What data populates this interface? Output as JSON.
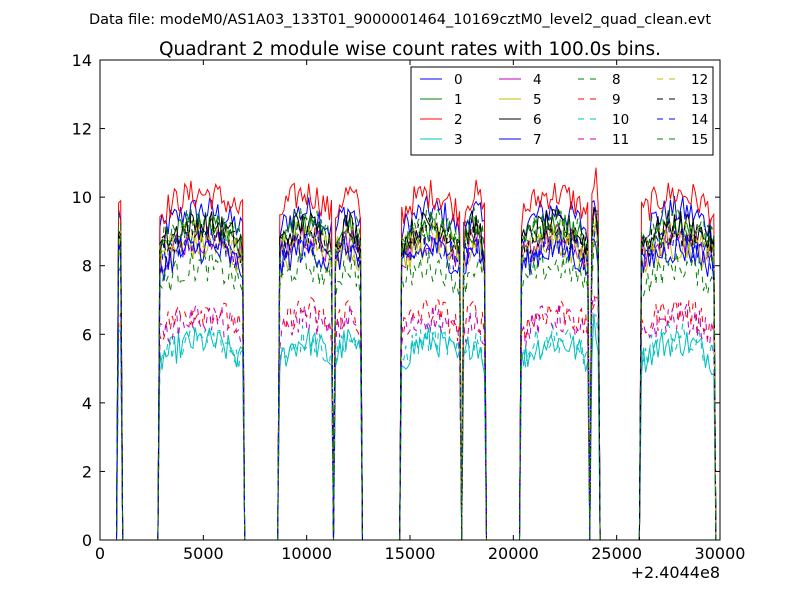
{
  "suptitle": "Data file: modeM0/AS1A03_133T01_9000001464_10169cztM0_level2_quad_clean.evt",
  "chart_data": {
    "type": "line",
    "title": "Quadrant 2 module wise count rates with 100.0s bins.",
    "xlabel": "",
    "ylabel": "",
    "x_offset_label": "+2.4044e8",
    "xlim": [
      0,
      30000
    ],
    "ylim": [
      0,
      14
    ],
    "xticks": [
      "0",
      "5000",
      "10000",
      "15000",
      "20000",
      "25000",
      "30000"
    ],
    "yticks": [
      "0",
      "2",
      "4",
      "6",
      "8",
      "10",
      "12",
      "14"
    ],
    "grid": false,
    "legend_position": "top-right",
    "legend_columns": 4,
    "active_segments": [
      [
        900,
        1000
      ],
      [
        2900,
        6900
      ],
      [
        8700,
        11200
      ],
      [
        11400,
        12600
      ],
      [
        14600,
        17400
      ],
      [
        17600,
        18600
      ],
      [
        20400,
        23600
      ],
      [
        23800,
        24100
      ],
      [
        26200,
        29700
      ]
    ],
    "segment_levels": [
      {
        "name": "0",
        "value": 9.0
      },
      {
        "name": "1",
        "value": 8.5
      },
      {
        "name": "2",
        "value": 9.5
      },
      {
        "name": "3",
        "value": 5.2
      },
      {
        "name": "4",
        "value": 8.2
      },
      {
        "name": "5",
        "value": 8.0
      },
      {
        "name": "6",
        "value": 8.6
      },
      {
        "name": "7",
        "value": 7.9
      },
      {
        "name": "8",
        "value": 7.4
      },
      {
        "name": "9",
        "value": 6.1
      },
      {
        "name": "10",
        "value": 5.3
      },
      {
        "name": "11",
        "value": 5.9
      },
      {
        "name": "12",
        "value": 8.3
      },
      {
        "name": "13",
        "value": 8.4
      },
      {
        "name": "14",
        "value": 8.1
      },
      {
        "name": "15",
        "value": 8.7
      }
    ],
    "series": [
      {
        "name": "0",
        "color": "#0000ff",
        "dash": "solid"
      },
      {
        "name": "1",
        "color": "#008000",
        "dash": "solid"
      },
      {
        "name": "2",
        "color": "#ff0000",
        "dash": "solid"
      },
      {
        "name": "3",
        "color": "#00bfbf",
        "dash": "solid"
      },
      {
        "name": "4",
        "color": "#bf00bf",
        "dash": "solid"
      },
      {
        "name": "5",
        "color": "#bfbf00",
        "dash": "solid"
      },
      {
        "name": "6",
        "color": "#000000",
        "dash": "solid"
      },
      {
        "name": "7",
        "color": "#0000ff",
        "dash": "solid"
      },
      {
        "name": "8",
        "color": "#008000",
        "dash": "dashed"
      },
      {
        "name": "9",
        "color": "#ff0000",
        "dash": "dashed"
      },
      {
        "name": "10",
        "color": "#00bfbf",
        "dash": "dashed"
      },
      {
        "name": "11",
        "color": "#bf00bf",
        "dash": "dashed"
      },
      {
        "name": "12",
        "color": "#bfbf00",
        "dash": "dashed"
      },
      {
        "name": "13",
        "color": "#000000",
        "dash": "dashed"
      },
      {
        "name": "14",
        "color": "#0000ff",
        "dash": "dashed"
      },
      {
        "name": "15",
        "color": "#008000",
        "dash": "dashed"
      }
    ]
  }
}
